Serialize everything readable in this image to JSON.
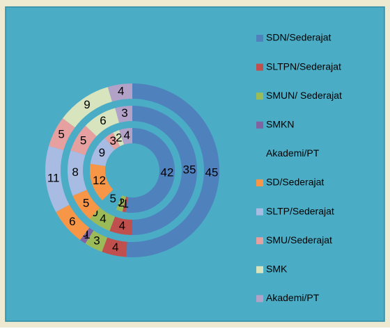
{
  "chart_data": {
    "type": "doughnut",
    "categories": [
      "SDN/Sederajat",
      "SLTPN/Sederajat",
      "SMUN/ Sederajat",
      "SMKN",
      "Akademi/PT",
      "SD/Sederajat",
      "SLTP/Sederajat",
      "SMU/Sederajat",
      "SMK",
      "Akademi/PT"
    ],
    "colors": [
      "#4f81bd",
      "#c0504d",
      "#9bbb59",
      "#8064a2",
      "#4bacc6",
      "#f79646",
      "#a8bbe3",
      "#e6a0a0",
      "#d7e4bd",
      "#b3a2c7"
    ],
    "series": [
      {
        "values": [
          45,
          4,
          3,
          1,
          0,
          6,
          11,
          5,
          9,
          4
        ]
      },
      {
        "values": [
          35,
          4,
          4,
          0,
          0,
          5,
          8,
          5,
          6,
          3
        ]
      },
      {
        "values": [
          42,
          1,
          2,
          0,
          5,
          12,
          9,
          3,
          2,
          4
        ]
      }
    ],
    "legend": "right"
  }
}
